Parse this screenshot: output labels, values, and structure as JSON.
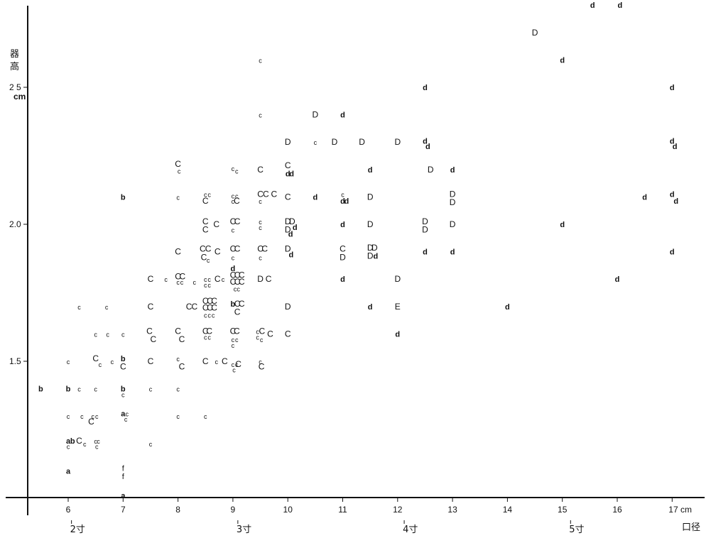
{
  "chart_data": {
    "type": "scatter",
    "title": "",
    "xlabel": "口径",
    "ylabel": "器高",
    "xunit": "cm",
    "yunit": "cm",
    "xlim": [
      5.2,
      17.6
    ],
    "ylim": [
      1.0,
      2.98
    ],
    "x_ticks": [
      {
        "value": 6,
        "label": "6"
      },
      {
        "value": 7,
        "label": "7"
      },
      {
        "value": 8,
        "label": "8"
      },
      {
        "value": 9,
        "label": "9"
      },
      {
        "value": 10,
        "label": "10"
      },
      {
        "value": 11,
        "label": "11"
      },
      {
        "value": 12,
        "label": "12"
      },
      {
        "value": 13,
        "label": "13"
      },
      {
        "value": 14,
        "label": "14"
      },
      {
        "value": 15,
        "label": "15"
      },
      {
        "value": 16,
        "label": "16"
      },
      {
        "value": 17,
        "label": "17 cm"
      }
    ],
    "y_ticks": [
      {
        "value": 1.5,
        "label": "1.5"
      },
      {
        "value": 2.0,
        "label": "2.0"
      },
      {
        "value": 2.5,
        "label": "2 5",
        "unit": "cm"
      }
    ],
    "sun_ticks": [
      {
        "value": 6.06,
        "label": "2寸"
      },
      {
        "value": 9.09,
        "label": "3寸"
      },
      {
        "value": 12.12,
        "label": "4寸"
      },
      {
        "value": 15.15,
        "label": "5寸"
      }
    ],
    "grid": false,
    "legend": "none",
    "series_note": "",
    "points": [
      {
        "x": 5.5,
        "y": 1.4,
        "m": "b"
      },
      {
        "x": 6.0,
        "y": 1.4,
        "m": "b"
      },
      {
        "x": 6.2,
        "y": 1.4,
        "m": "c"
      },
      {
        "x": 6.5,
        "y": 1.4,
        "m": "c"
      },
      {
        "x": 7.0,
        "y": 1.4,
        "m": "b"
      },
      {
        "x": 7.0,
        "y": 1.38,
        "m": "c"
      },
      {
        "x": 7.5,
        "y": 1.4,
        "m": "c"
      },
      {
        "x": 8.0,
        "y": 1.4,
        "m": "c"
      },
      {
        "x": 6.0,
        "y": 1.1,
        "m": "a"
      },
      {
        "x": 7.0,
        "y": 1.11,
        "m": "f"
      },
      {
        "x": 7.0,
        "y": 1.08,
        "m": "f"
      },
      {
        "x": 7.0,
        "y": 1.01,
        "m": "a"
      },
      {
        "x": 6.0,
        "y": 1.21,
        "m": "a"
      },
      {
        "x": 6.08,
        "y": 1.21,
        "m": "b"
      },
      {
        "x": 6.0,
        "y": 1.19,
        "m": "c"
      },
      {
        "x": 6.2,
        "y": 1.21,
        "m": "C"
      },
      {
        "x": 6.3,
        "y": 1.2,
        "m": "c"
      },
      {
        "x": 6.5,
        "y": 1.21,
        "m": "c"
      },
      {
        "x": 6.55,
        "y": 1.21,
        "m": "c"
      },
      {
        "x": 6.52,
        "y": 1.19,
        "m": "c"
      },
      {
        "x": 7.5,
        "y": 1.2,
        "m": "c"
      },
      {
        "x": 6.0,
        "y": 1.3,
        "m": "c"
      },
      {
        "x": 6.25,
        "y": 1.3,
        "m": "c"
      },
      {
        "x": 6.45,
        "y": 1.3,
        "m": "c"
      },
      {
        "x": 6.52,
        "y": 1.3,
        "m": "c"
      },
      {
        "x": 6.42,
        "y": 1.28,
        "m": "C"
      },
      {
        "x": 7.0,
        "y": 1.31,
        "m": "a"
      },
      {
        "x": 7.07,
        "y": 1.31,
        "m": "c"
      },
      {
        "x": 7.05,
        "y": 1.29,
        "m": "c"
      },
      {
        "x": 8.0,
        "y": 1.3,
        "m": "c"
      },
      {
        "x": 8.5,
        "y": 1.3,
        "m": "c"
      },
      {
        "x": 6.0,
        "y": 1.5,
        "m": "c"
      },
      {
        "x": 6.5,
        "y": 1.51,
        "m": "C"
      },
      {
        "x": 6.58,
        "y": 1.49,
        "m": "c"
      },
      {
        "x": 6.8,
        "y": 1.5,
        "m": "c"
      },
      {
        "x": 7.0,
        "y": 1.51,
        "m": "b"
      },
      {
        "x": 7.0,
        "y": 1.48,
        "m": "C"
      },
      {
        "x": 7.5,
        "y": 1.5,
        "m": "C"
      },
      {
        "x": 8.0,
        "y": 1.51,
        "m": "c"
      },
      {
        "x": 8.07,
        "y": 1.48,
        "m": "C"
      },
      {
        "x": 8.5,
        "y": 1.5,
        "m": "C"
      },
      {
        "x": 8.7,
        "y": 1.5,
        "m": "c"
      },
      {
        "x": 8.85,
        "y": 1.5,
        "m": "C"
      },
      {
        "x": 9.0,
        "y": 1.49,
        "m": "c"
      },
      {
        "x": 9.07,
        "y": 1.49,
        "m": "c"
      },
      {
        "x": 9.02,
        "y": 1.47,
        "m": "c"
      },
      {
        "x": 9.1,
        "y": 1.49,
        "m": "C"
      },
      {
        "x": 9.5,
        "y": 1.5,
        "m": "c"
      },
      {
        "x": 9.52,
        "y": 1.48,
        "m": "C"
      },
      {
        "x": 6.5,
        "y": 1.6,
        "m": "c"
      },
      {
        "x": 6.72,
        "y": 1.6,
        "m": "c"
      },
      {
        "x": 7.0,
        "y": 1.6,
        "m": "c"
      },
      {
        "x": 7.48,
        "y": 1.61,
        "m": "C"
      },
      {
        "x": 7.55,
        "y": 1.58,
        "m": "C"
      },
      {
        "x": 8.0,
        "y": 1.61,
        "m": "C"
      },
      {
        "x": 8.07,
        "y": 1.58,
        "m": "C"
      },
      {
        "x": 8.5,
        "y": 1.61,
        "m": "C"
      },
      {
        "x": 8.57,
        "y": 1.61,
        "m": "C"
      },
      {
        "x": 8.5,
        "y": 1.59,
        "m": "c"
      },
      {
        "x": 8.57,
        "y": 1.59,
        "m": "c"
      },
      {
        "x": 9.0,
        "y": 1.61,
        "m": "C"
      },
      {
        "x": 9.07,
        "y": 1.61,
        "m": "C"
      },
      {
        "x": 9.0,
        "y": 1.58,
        "m": "c"
      },
      {
        "x": 9.07,
        "y": 1.58,
        "m": "c"
      },
      {
        "x": 9.0,
        "y": 1.56,
        "m": "c"
      },
      {
        "x": 9.45,
        "y": 1.61,
        "m": "c"
      },
      {
        "x": 9.53,
        "y": 1.61,
        "m": "C"
      },
      {
        "x": 9.45,
        "y": 1.59,
        "m": "c"
      },
      {
        "x": 9.52,
        "y": 1.58,
        "m": "c"
      },
      {
        "x": 9.68,
        "y": 1.6,
        "m": "C"
      },
      {
        "x": 10.0,
        "y": 1.6,
        "m": "C"
      },
      {
        "x": 12.0,
        "y": 1.6,
        "m": "d"
      },
      {
        "x": 6.2,
        "y": 1.7,
        "m": "c"
      },
      {
        "x": 6.7,
        "y": 1.7,
        "m": "c"
      },
      {
        "x": 7.5,
        "y": 1.7,
        "m": "C"
      },
      {
        "x": 8.2,
        "y": 1.7,
        "m": "C"
      },
      {
        "x": 8.3,
        "y": 1.7,
        "m": "C"
      },
      {
        "x": 8.5,
        "y": 1.72,
        "m": "C"
      },
      {
        "x": 8.58,
        "y": 1.72,
        "m": "C"
      },
      {
        "x": 8.66,
        "y": 1.72,
        "m": "C"
      },
      {
        "x": 8.5,
        "y": 1.695,
        "m": "C"
      },
      {
        "x": 8.58,
        "y": 1.695,
        "m": "C"
      },
      {
        "x": 8.66,
        "y": 1.695,
        "m": "C"
      },
      {
        "x": 8.5,
        "y": 1.67,
        "m": "c"
      },
      {
        "x": 8.57,
        "y": 1.67,
        "m": "c"
      },
      {
        "x": 8.64,
        "y": 1.67,
        "m": "c"
      },
      {
        "x": 9.0,
        "y": 1.71,
        "m": "b"
      },
      {
        "x": 9.08,
        "y": 1.71,
        "m": "C"
      },
      {
        "x": 9.16,
        "y": 1.71,
        "m": "C"
      },
      {
        "x": 9.08,
        "y": 1.68,
        "m": "C"
      },
      {
        "x": 10.0,
        "y": 1.7,
        "m": "D"
      },
      {
        "x": 11.5,
        "y": 1.7,
        "m": "d"
      },
      {
        "x": 12.0,
        "y": 1.7,
        "m": "E"
      },
      {
        "x": 14.0,
        "y": 1.7,
        "m": "d"
      },
      {
        "x": 7.5,
        "y": 1.8,
        "m": "C"
      },
      {
        "x": 7.78,
        "y": 1.8,
        "m": "c"
      },
      {
        "x": 8.0,
        "y": 1.81,
        "m": "C"
      },
      {
        "x": 8.08,
        "y": 1.81,
        "m": "C"
      },
      {
        "x": 8.0,
        "y": 1.79,
        "m": "c"
      },
      {
        "x": 8.07,
        "y": 1.79,
        "m": "c"
      },
      {
        "x": 8.3,
        "y": 1.79,
        "m": "c"
      },
      {
        "x": 8.5,
        "y": 1.8,
        "m": "c"
      },
      {
        "x": 8.57,
        "y": 1.8,
        "m": "c"
      },
      {
        "x": 8.5,
        "y": 1.78,
        "m": "c"
      },
      {
        "x": 8.57,
        "y": 1.78,
        "m": "c"
      },
      {
        "x": 8.72,
        "y": 1.8,
        "m": "C"
      },
      {
        "x": 8.82,
        "y": 1.8,
        "m": "c"
      },
      {
        "x": 9.0,
        "y": 1.84,
        "m": "d"
      },
      {
        "x": 9.0,
        "y": 1.815,
        "m": "C"
      },
      {
        "x": 9.08,
        "y": 1.815,
        "m": "C"
      },
      {
        "x": 9.16,
        "y": 1.815,
        "m": "C"
      },
      {
        "x": 9.0,
        "y": 1.79,
        "m": "C"
      },
      {
        "x": 9.08,
        "y": 1.79,
        "m": "C"
      },
      {
        "x": 9.16,
        "y": 1.79,
        "m": "C"
      },
      {
        "x": 9.04,
        "y": 1.765,
        "m": "c"
      },
      {
        "x": 9.1,
        "y": 1.765,
        "m": "c"
      },
      {
        "x": 9.5,
        "y": 1.8,
        "m": "D"
      },
      {
        "x": 9.65,
        "y": 1.8,
        "m": "C"
      },
      {
        "x": 11.0,
        "y": 1.8,
        "m": "d"
      },
      {
        "x": 12.0,
        "y": 1.8,
        "m": "D"
      },
      {
        "x": 16.0,
        "y": 1.8,
        "m": "d"
      },
      {
        "x": 8.0,
        "y": 1.9,
        "m": "C"
      },
      {
        "x": 8.45,
        "y": 1.91,
        "m": "C"
      },
      {
        "x": 8.55,
        "y": 1.91,
        "m": "C"
      },
      {
        "x": 8.47,
        "y": 1.88,
        "m": "C"
      },
      {
        "x": 8.55,
        "y": 1.87,
        "m": "c"
      },
      {
        "x": 8.72,
        "y": 1.9,
        "m": "C"
      },
      {
        "x": 9.0,
        "y": 1.91,
        "m": "C"
      },
      {
        "x": 9.08,
        "y": 1.91,
        "m": "C"
      },
      {
        "x": 9.0,
        "y": 1.88,
        "m": "c"
      },
      {
        "x": 9.5,
        "y": 1.91,
        "m": "C"
      },
      {
        "x": 9.58,
        "y": 1.91,
        "m": "C"
      },
      {
        "x": 9.5,
        "y": 1.88,
        "m": "c"
      },
      {
        "x": 10.0,
        "y": 1.91,
        "m": "D"
      },
      {
        "x": 10.06,
        "y": 1.89,
        "m": "d"
      },
      {
        "x": 11.0,
        "y": 1.91,
        "m": "C"
      },
      {
        "x": 11.0,
        "y": 1.88,
        "m": "D"
      },
      {
        "x": 11.5,
        "y": 1.915,
        "m": "D"
      },
      {
        "x": 11.58,
        "y": 1.915,
        "m": "D"
      },
      {
        "x": 11.5,
        "y": 1.885,
        "m": "D"
      },
      {
        "x": 11.6,
        "y": 1.885,
        "m": "d"
      },
      {
        "x": 12.5,
        "y": 1.9,
        "m": "d"
      },
      {
        "x": 13.0,
        "y": 1.9,
        "m": "d"
      },
      {
        "x": 17.0,
        "y": 1.9,
        "m": "d"
      },
      {
        "x": 8.5,
        "y": 2.01,
        "m": "C"
      },
      {
        "x": 8.5,
        "y": 1.98,
        "m": "C"
      },
      {
        "x": 8.7,
        "y": 2.0,
        "m": "C"
      },
      {
        "x": 9.0,
        "y": 2.01,
        "m": "C"
      },
      {
        "x": 9.08,
        "y": 2.01,
        "m": "C"
      },
      {
        "x": 9.0,
        "y": 1.98,
        "m": "c"
      },
      {
        "x": 9.5,
        "y": 2.01,
        "m": "c"
      },
      {
        "x": 9.5,
        "y": 1.99,
        "m": "c"
      },
      {
        "x": 10.0,
        "y": 2.01,
        "m": "D"
      },
      {
        "x": 10.08,
        "y": 2.01,
        "m": "D"
      },
      {
        "x": 10.0,
        "y": 1.98,
        "m": "D"
      },
      {
        "x": 10.13,
        "y": 1.99,
        "m": "d"
      },
      {
        "x": 10.05,
        "y": 1.965,
        "m": "d"
      },
      {
        "x": 11.0,
        "y": 2.0,
        "m": "d"
      },
      {
        "x": 11.5,
        "y": 2.0,
        "m": "D"
      },
      {
        "x": 12.5,
        "y": 2.01,
        "m": "D"
      },
      {
        "x": 12.5,
        "y": 1.98,
        "m": "D"
      },
      {
        "x": 13.0,
        "y": 2.0,
        "m": "D"
      },
      {
        "x": 15.0,
        "y": 2.0,
        "m": "d"
      },
      {
        "x": 7.0,
        "y": 2.1,
        "m": "b"
      },
      {
        "x": 8.0,
        "y": 2.1,
        "m": "c"
      },
      {
        "x": 8.5,
        "y": 2.11,
        "m": "c"
      },
      {
        "x": 8.57,
        "y": 2.11,
        "m": "c"
      },
      {
        "x": 8.5,
        "y": 2.085,
        "m": "C"
      },
      {
        "x": 9.0,
        "y": 2.105,
        "m": "c"
      },
      {
        "x": 9.07,
        "y": 2.105,
        "m": "c"
      },
      {
        "x": 9.0,
        "y": 2.085,
        "m": "c"
      },
      {
        "x": 9.07,
        "y": 2.085,
        "m": "C"
      },
      {
        "x": 9.5,
        "y": 2.11,
        "m": "C"
      },
      {
        "x": 9.5,
        "y": 2.085,
        "m": "c"
      },
      {
        "x": 9.6,
        "y": 2.11,
        "m": "C"
      },
      {
        "x": 9.75,
        "y": 2.11,
        "m": "C"
      },
      {
        "x": 10.0,
        "y": 2.1,
        "m": "C"
      },
      {
        "x": 10.5,
        "y": 2.1,
        "m": "d"
      },
      {
        "x": 11.0,
        "y": 2.11,
        "m": "c"
      },
      {
        "x": 11.0,
        "y": 2.085,
        "m": "d"
      },
      {
        "x": 11.07,
        "y": 2.085,
        "m": "d"
      },
      {
        "x": 11.5,
        "y": 2.1,
        "m": "D"
      },
      {
        "x": 13.0,
        "y": 2.11,
        "m": "D"
      },
      {
        "x": 13.0,
        "y": 2.08,
        "m": "D"
      },
      {
        "x": 16.5,
        "y": 2.1,
        "m": "d"
      },
      {
        "x": 17.0,
        "y": 2.11,
        "m": "d"
      },
      {
        "x": 17.07,
        "y": 2.085,
        "m": "d"
      },
      {
        "x": 8.0,
        "y": 2.22,
        "m": "C"
      },
      {
        "x": 8.02,
        "y": 2.195,
        "m": "c"
      },
      {
        "x": 9.0,
        "y": 2.205,
        "m": "c"
      },
      {
        "x": 9.07,
        "y": 2.195,
        "m": "c"
      },
      {
        "x": 9.5,
        "y": 2.2,
        "m": "C"
      },
      {
        "x": 10.0,
        "y": 2.215,
        "m": "C"
      },
      {
        "x": 10.0,
        "y": 2.185,
        "m": "d"
      },
      {
        "x": 10.07,
        "y": 2.185,
        "m": "d"
      },
      {
        "x": 11.5,
        "y": 2.2,
        "m": "d"
      },
      {
        "x": 12.6,
        "y": 2.2,
        "m": "D"
      },
      {
        "x": 13.0,
        "y": 2.2,
        "m": "d"
      },
      {
        "x": 10.0,
        "y": 2.3,
        "m": "D"
      },
      {
        "x": 10.5,
        "y": 2.3,
        "m": "c"
      },
      {
        "x": 10.85,
        "y": 2.3,
        "m": "D"
      },
      {
        "x": 11.35,
        "y": 2.3,
        "m": "D"
      },
      {
        "x": 12.0,
        "y": 2.3,
        "m": "D"
      },
      {
        "x": 12.5,
        "y": 2.305,
        "m": "d"
      },
      {
        "x": 12.55,
        "y": 2.285,
        "m": "d"
      },
      {
        "x": 17.0,
        "y": 2.305,
        "m": "d"
      },
      {
        "x": 17.05,
        "y": 2.285,
        "m": "d"
      },
      {
        "x": 9.5,
        "y": 2.4,
        "m": "c"
      },
      {
        "x": 10.5,
        "y": 2.4,
        "m": "D"
      },
      {
        "x": 11.0,
        "y": 2.4,
        "m": "d"
      },
      {
        "x": 12.5,
        "y": 2.5,
        "m": "d"
      },
      {
        "x": 17.0,
        "y": 2.5,
        "m": "d"
      },
      {
        "x": 9.5,
        "y": 2.6,
        "m": "c"
      },
      {
        "x": 15.0,
        "y": 2.6,
        "m": "d"
      },
      {
        "x": 14.5,
        "y": 2.7,
        "m": "D"
      },
      {
        "x": 15.55,
        "y": 2.8,
        "m": "d"
      },
      {
        "x": 16.05,
        "y": 2.8,
        "m": "d"
      }
    ]
  }
}
